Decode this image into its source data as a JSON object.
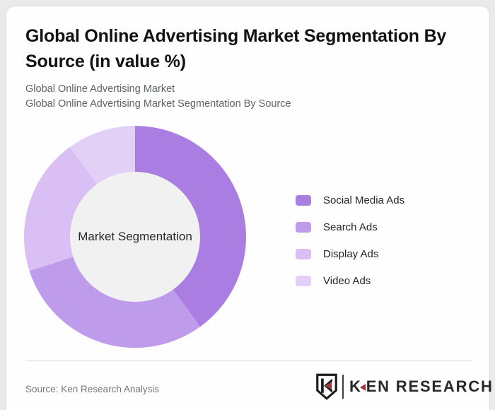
{
  "header": {
    "title": "Global Online Advertising Market Segmentation By Source (in value %)",
    "subtitle_line1": "Global Online Advertising Market",
    "subtitle_line2": "Global Online Advertising Market Segmentation By Source"
  },
  "chart_data": {
    "type": "pie",
    "subtype": "donut",
    "title": "Global Online Advertising Market Segmentation By Source (in value %)",
    "center_label": "Market Segmentation",
    "categories": [
      "Social Media Ads",
      "Search Ads",
      "Display Ads",
      "Video Ads"
    ],
    "values": [
      40,
      30,
      20,
      10
    ],
    "unit": "value %",
    "colors": [
      "#a97de2",
      "#bf9bec",
      "#d9bff3",
      "#e3d0f7"
    ],
    "start_angle_deg": 0,
    "direction": "clockwise",
    "legend_position": "right",
    "inner_circle_color": "#f2f1f2",
    "data_labels_shown": false
  },
  "footer": {
    "source": "Source: Ken Research Analysis",
    "logo": {
      "text_k": "K",
      "text_rest": "EN RESEARCH",
      "accent_color": "#a8333a"
    }
  }
}
